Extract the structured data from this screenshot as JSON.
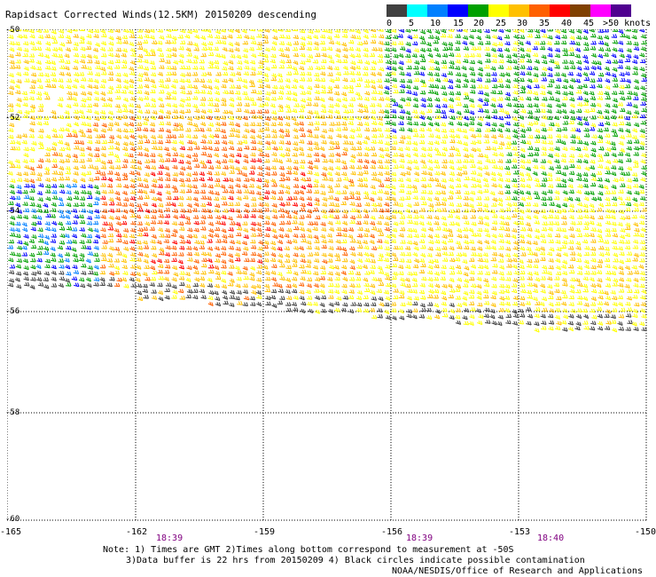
{
  "title": "Rapidsact Corrected Winds(12.5KM) 20150209 descending",
  "legend": {
    "labels": [
      "0",
      "5",
      "10",
      "15",
      "20",
      "25",
      "30",
      "35",
      "40",
      "45",
      ">50 knots"
    ],
    "colors": [
      "#404040",
      "#00ffff",
      "#0080ff",
      "#0000ff",
      "#00a000",
      "#ffff00",
      "#ffc000",
      "#ff6000",
      "#ff0000",
      "#804000",
      "#ff00ff",
      "#500090"
    ]
  },
  "map": {
    "lat_labels": [
      "-50",
      "-52",
      "-54",
      "-56",
      "-58",
      "-60"
    ],
    "lon_labels": [
      "-165",
      "-162",
      "-159",
      "-156",
      "-153",
      "-150"
    ],
    "time_labels": [
      "18:39",
      "18:39",
      "18:40"
    ],
    "lat_range": [
      -60,
      -50
    ],
    "lon_range": [
      -165,
      -150
    ]
  },
  "notes": {
    "line1": "Note: 1) Times are GMT 2)Times along bottom correspond to measurement at -50S",
    "line2": "3)Data buffer is 22 hrs from 20150209 4) Black circles indicate possible contamination",
    "line3": "NOAA/NESDIS/Office of Research and Applications"
  }
}
